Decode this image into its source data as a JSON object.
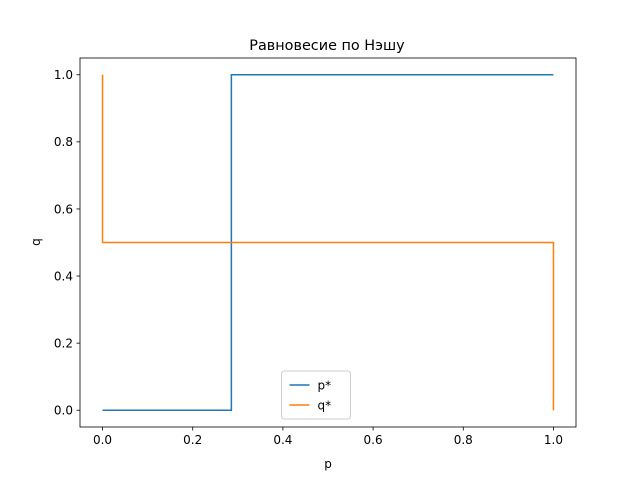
{
  "chart_data": {
    "type": "line",
    "title": "Равновесие по Нэшу",
    "xlabel": "p",
    "ylabel": "q",
    "xlim": [
      -0.05,
      1.05
    ],
    "ylim": [
      -0.05,
      1.05
    ],
    "xticks": [
      "0.0",
      "0.2",
      "0.4",
      "0.6",
      "0.8",
      "1.0"
    ],
    "yticks": [
      "0.0",
      "0.2",
      "0.4",
      "0.6",
      "0.8",
      "1.0"
    ],
    "grid": false,
    "legend": "lower center",
    "series": [
      {
        "name": "p*",
        "color": "#1f77b4",
        "x": [
          0.0,
          0.2857,
          0.2857,
          1.0
        ],
        "y": [
          0.0,
          0.0,
          1.0,
          1.0
        ]
      },
      {
        "name": "q*",
        "color": "#ff7f0e",
        "x": [
          0.0,
          0.0,
          1.0,
          1.0
        ],
        "y": [
          1.0,
          0.5,
          0.5,
          0.0
        ]
      }
    ]
  }
}
